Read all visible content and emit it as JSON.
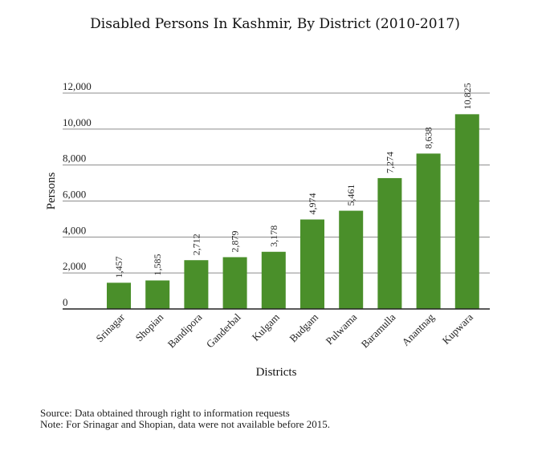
{
  "chart_data": {
    "type": "bar",
    "title": "Disabled Persons In Kashmir, By District (2010-2017)",
    "xlabel": "Districts",
    "ylabel": "Persons",
    "categories": [
      "Srinagar",
      "Shopian",
      "Bandipora",
      "Ganderbal",
      "Kulgam",
      "Budgam",
      "Pulwama",
      "Baramulla",
      "Anantnag",
      "Kupwara"
    ],
    "values": [
      1457,
      1585,
      2712,
      2879,
      3178,
      4974,
      5461,
      7274,
      8638,
      10825
    ],
    "value_labels": [
      "1,457",
      "1,585",
      "2,712",
      "2,879",
      "3,178",
      "4,974",
      "5,461",
      "7,274",
      "8,638",
      "10,825"
    ],
    "ylim": [
      0,
      12000
    ],
    "yticks": [
      0,
      2000,
      4000,
      6000,
      8000,
      10000,
      12000
    ],
    "ytick_labels": [
      "0",
      "2,000",
      "4,000",
      "6,000",
      "8,000",
      "10,000",
      "12,000"
    ],
    "grid": true,
    "bar_color": "#4a8f2a"
  },
  "notes": {
    "source": "Source: Data obtained through right to information requests",
    "note": "Note: For Srinagar and Shopian, data were not available before 2015."
  }
}
